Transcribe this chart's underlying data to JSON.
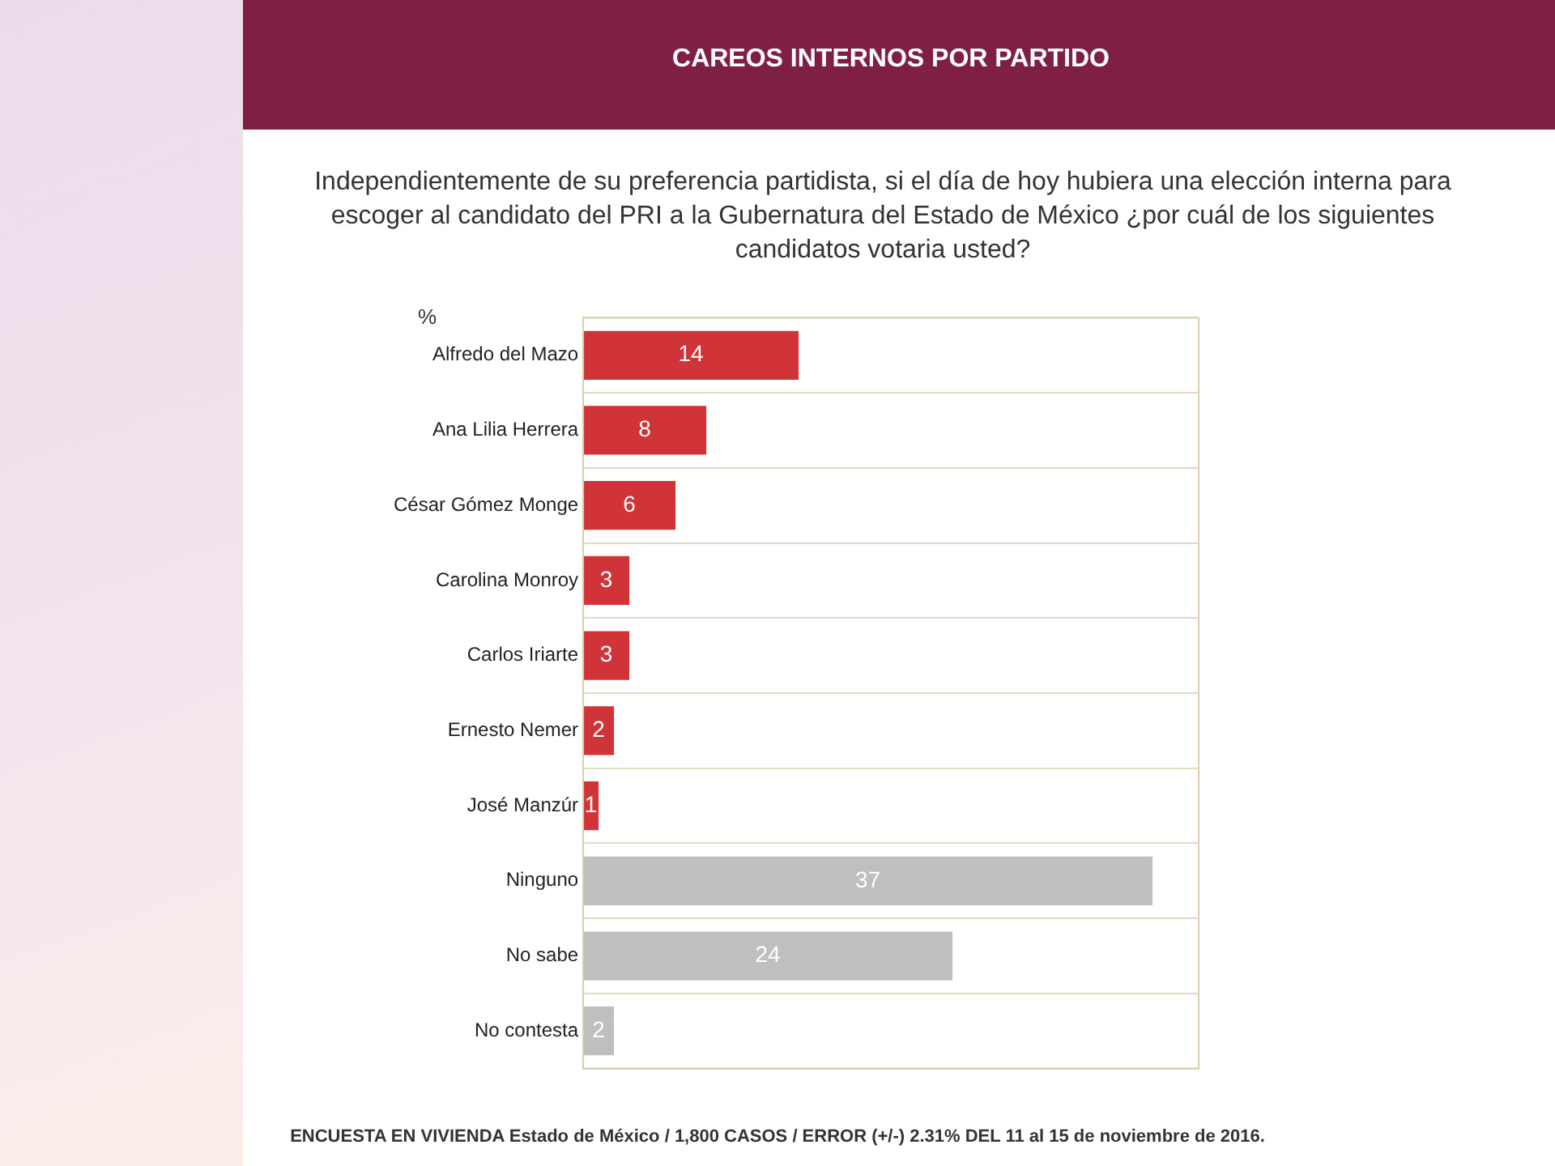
{
  "chart_data": {
    "type": "bar",
    "orientation": "horizontal",
    "title": "CAREOS INTERNOS POR PARTIDO",
    "subtitle": "Independientemente de su preferencia partidista,  si el día de hoy hubiera una elección interna para escoger al candidato del PRI a la Gubernatura del Estado de México ¿por cuál de los siguientes candidatos votaria usted?",
    "ylabel": "%",
    "categories": [
      "Alfredo del Mazo",
      "Ana Lilia Herrera",
      "César Gómez Monge",
      "Carolina Monroy",
      "Carlos Iriarte",
      "Ernesto Nemer",
      "José Manzúr",
      "Ninguno",
      "No sabe",
      "No contesta"
    ],
    "values": [
      14,
      8,
      6,
      3,
      3,
      2,
      1,
      37,
      24,
      2
    ],
    "colors": [
      "#d03438",
      "#d03438",
      "#d03438",
      "#d03438",
      "#d03438",
      "#d03438",
      "#d03438",
      "#bfbfbf",
      "#bfbfbf",
      "#bfbfbf"
    ],
    "xlim": [
      0,
      40
    ],
    "tick_labels": "y",
    "grid": "y",
    "data_labels": true,
    "legend": false,
    "annotations": [
      "ENCUESTA EN VIVIENDA Estado de México /  1,800 CASOS / ERROR (+/-) 2.31% DEL 11 al 15 de noviembre de 2016."
    ]
  }
}
